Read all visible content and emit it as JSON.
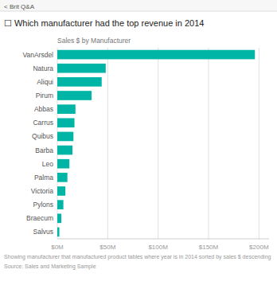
{
  "chart_data": {
    "type": "bar",
    "orientation": "horizontal",
    "title": "Sales $ by Manufacturer",
    "subtitle": "☐ Which manufacturer had the top revenue in 2014",
    "annotations": [
      "< Brit Q&A",
      "Showing manufacturer that manufactured product tables where year is in 2014 sorted by sales $ descending",
      "Source: Sales and Marketing Sample"
    ],
    "categories": [
      "VanArsdel",
      "Natura",
      "Aliqui",
      "Pirum",
      "Abbas",
      "Carrus",
      "Quibus",
      "Barba",
      "Leo",
      "Palma",
      "Victoria",
      "Pylons",
      "Braecum",
      "Salvus"
    ],
    "values": [
      196,
      48,
      44,
      34,
      18,
      17,
      16,
      15,
      12,
      10,
      8,
      6,
      4,
      2
    ],
    "color": "#00b4a6",
    "xlim": [
      0,
      210
    ],
    "xticks": [
      {
        "value": 0,
        "label": "$0M"
      },
      {
        "value": 50,
        "label": "$50M"
      },
      {
        "value": 100,
        "label": "$100M"
      },
      {
        "value": 150,
        "label": "$150M"
      },
      {
        "value": 200,
        "label": "$200M"
      }
    ],
    "grid": true
  }
}
